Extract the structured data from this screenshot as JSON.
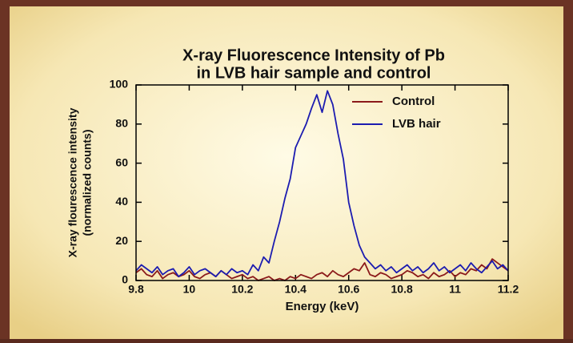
{
  "chart_data": {
    "type": "line",
    "title": [
      "X-ray Fluorescence Intensity of Pb",
      "in LVB hair sample and control"
    ],
    "xlabel": "Energy (keV)",
    "ylabel": [
      "X-ray flourescence intensity",
      "(normalized counts)"
    ],
    "x": [
      9.8,
      9.82,
      9.84,
      9.86,
      9.88,
      9.9,
      9.92,
      9.94,
      9.96,
      9.98,
      10,
      10.02,
      10.04,
      10.06,
      10.08,
      10.1,
      10.12,
      10.14,
      10.16,
      10.18,
      10.2,
      10.22,
      10.24,
      10.26,
      10.28,
      10.3,
      10.32,
      10.34,
      10.36,
      10.38,
      10.4,
      10.42,
      10.44,
      10.46,
      10.48,
      10.5,
      10.52,
      10.54,
      10.56,
      10.58,
      10.6,
      10.62,
      10.64,
      10.66,
      10.68,
      10.7,
      10.72,
      10.74,
      10.76,
      10.78,
      10.8,
      10.82,
      10.84,
      10.86,
      10.88,
      10.9,
      10.92,
      10.94,
      10.96,
      10.98,
      11,
      11.02,
      11.04,
      11.06,
      11.08,
      11.1,
      11.12,
      11.14,
      11.16,
      11.18,
      11.2
    ],
    "series": [
      {
        "name": "Control",
        "color": "#8b1a1a",
        "values": [
          4,
          6,
          3,
          2,
          5,
          1,
          3,
          4,
          2,
          3,
          5,
          2,
          1,
          3,
          4,
          2,
          5,
          3,
          1,
          2,
          3,
          1,
          2,
          0,
          1,
          2,
          0,
          1,
          0,
          2,
          1,
          3,
          2,
          1,
          3,
          4,
          2,
          5,
          3,
          2,
          4,
          6,
          5,
          9,
          3,
          2,
          4,
          3,
          1,
          2,
          3,
          5,
          4,
          2,
          3,
          1,
          4,
          2,
          3,
          5,
          2,
          4,
          3,
          6,
          5,
          8,
          6,
          11,
          9,
          7,
          5
        ]
      },
      {
        "name": "LVB hair",
        "color": "#1c1cb0",
        "values": [
          5,
          8,
          6,
          4,
          7,
          3,
          5,
          6,
          2,
          4,
          7,
          3,
          5,
          6,
          4,
          2,
          5,
          3,
          6,
          4,
          5,
          3,
          8,
          5,
          12,
          9,
          20,
          30,
          42,
          52,
          68,
          74,
          80,
          88,
          95,
          86,
          97,
          90,
          75,
          62,
          40,
          28,
          18,
          12,
          9,
          6,
          8,
          5,
          7,
          4,
          6,
          8,
          5,
          7,
          4,
          6,
          9,
          5,
          7,
          4,
          6,
          8,
          5,
          9,
          6,
          4,
          7,
          10,
          6,
          8,
          5
        ]
      }
    ],
    "xlim": [
      9.8,
      11.2
    ],
    "xticks": [
      9.8,
      10,
      10.2,
      10.4,
      10.6,
      10.8,
      11,
      11.2
    ],
    "ylim": [
      0,
      100
    ],
    "yticks": [
      0,
      20,
      40,
      60,
      80,
      100
    ],
    "legend": "upper right"
  }
}
